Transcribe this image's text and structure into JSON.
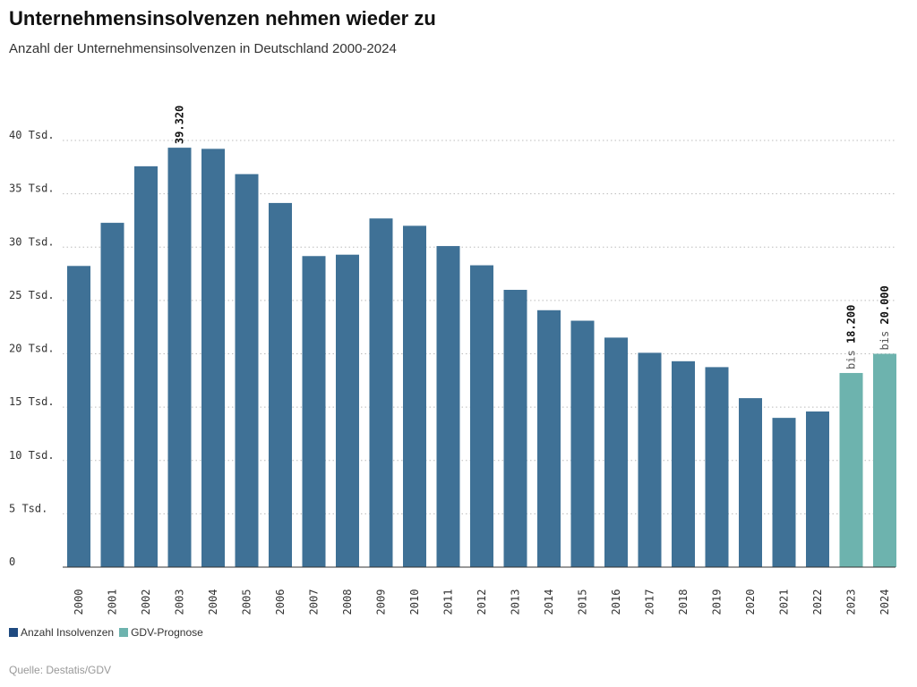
{
  "title": "Unternehmensinsolvenzen nehmen wieder zu",
  "subtitle": "Anzahl der Unternehmensinsolvenzen in Deutschland 2000-2024",
  "source": "Quelle: Destatis/GDV",
  "chart_data": {
    "type": "bar",
    "categories": [
      "2000",
      "2001",
      "2002",
      "2003",
      "2004",
      "2005",
      "2006",
      "2007",
      "2008",
      "2009",
      "2010",
      "2011",
      "2012",
      "2013",
      "2014",
      "2015",
      "2016",
      "2017",
      "2018",
      "2019",
      "2020",
      "2021",
      "2022",
      "2023",
      "2024"
    ],
    "series": [
      {
        "name": "Anzahl Insolvenzen",
        "color": "#3f7196",
        "legend_color": "#1f4a80",
        "values": [
          28235,
          32278,
          37579,
          39320,
          39213,
          36843,
          34137,
          29160,
          29291,
          32687,
          31998,
          30099,
          28297,
          25995,
          24085,
          23101,
          21518,
          20093,
          19302,
          18749,
          15841,
          13993,
          14590,
          null,
          null
        ]
      },
      {
        "name": "GDV-Prognose",
        "color": "#6db3ae",
        "values": [
          null,
          null,
          null,
          null,
          null,
          null,
          null,
          null,
          null,
          null,
          null,
          null,
          null,
          null,
          null,
          null,
          null,
          null,
          null,
          null,
          null,
          null,
          null,
          18200,
          20000
        ]
      }
    ],
    "data_labels": [
      {
        "category": "2003",
        "prefix": "",
        "text": "39.320"
      },
      {
        "category": "2023",
        "prefix": "bis",
        "text": "18.200"
      },
      {
        "category": "2024",
        "prefix": "bis",
        "text": "20.000"
      }
    ],
    "yticks": [
      0,
      5000,
      10000,
      15000,
      20000,
      25000,
      30000,
      35000,
      40000
    ],
    "ytick_labels": [
      "0",
      "5 Tsd.",
      "10 Tsd.",
      "15 Tsd.",
      "20 Tsd.",
      "25 Tsd.",
      "30 Tsd.",
      "35 Tsd.",
      "40 Tsd."
    ],
    "ylim": [
      0,
      40000
    ],
    "grid": true,
    "legend_position": "bottom-left"
  }
}
